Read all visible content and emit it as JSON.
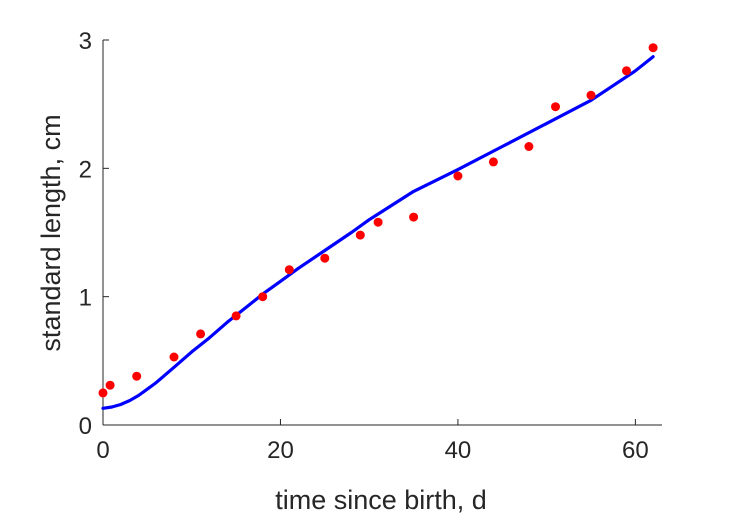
{
  "chart_data": {
    "type": "scatter",
    "xlabel": "time since birth, d",
    "ylabel": "standard length, cm",
    "xlim": [
      0,
      63
    ],
    "ylim": [
      0,
      3
    ],
    "grid": false,
    "legend": "none",
    "x_ticks": [
      "0",
      "20",
      "40",
      "60"
    ],
    "y_ticks": [
      "0",
      "1",
      "2",
      "3"
    ],
    "series": [
      {
        "kind": "points",
        "color": "#ff0000",
        "x": [
          0,
          0.8,
          3.8,
          8,
          11,
          15,
          18,
          21,
          25,
          29,
          31,
          35,
          40,
          44,
          48,
          51,
          55,
          59,
          62
        ],
        "y": [
          0.25,
          0.31,
          0.38,
          0.53,
          0.71,
          0.85,
          1.0,
          1.21,
          1.3,
          1.48,
          1.58,
          1.62,
          1.94,
          2.05,
          2.17,
          2.48,
          2.57,
          2.76,
          2.94
        ]
      },
      {
        "kind": "line",
        "color": "#0000ff",
        "x": [
          0,
          1,
          2,
          3,
          4,
          5,
          6,
          7,
          8,
          9,
          10,
          12,
          14,
          16,
          18,
          20,
          22,
          25,
          28,
          30,
          35,
          40,
          45,
          50,
          55,
          60,
          62
        ],
        "y": [
          0.13,
          0.14,
          0.16,
          0.19,
          0.23,
          0.28,
          0.33,
          0.39,
          0.45,
          0.51,
          0.57,
          0.68,
          0.8,
          0.91,
          1.02,
          1.12,
          1.22,
          1.36,
          1.5,
          1.6,
          1.82,
          1.99,
          2.17,
          2.35,
          2.53,
          2.76,
          2.87
        ]
      }
    ]
  }
}
